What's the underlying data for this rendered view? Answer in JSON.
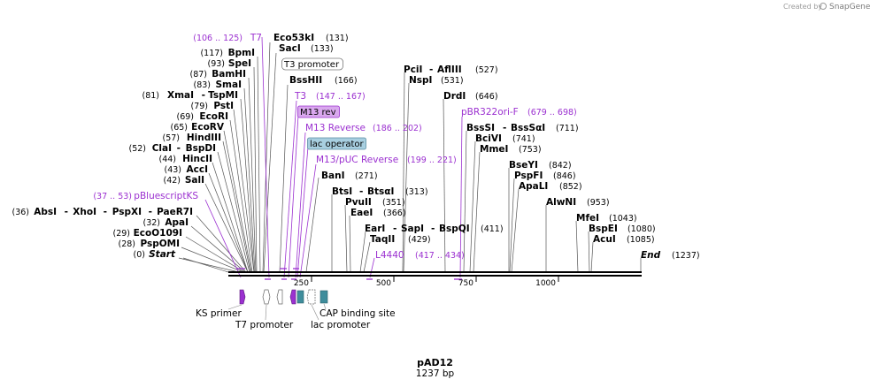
{
  "plasmid": {
    "name": "pAD12",
    "length_label": "1237 bp"
  },
  "credit": {
    "text": "Created by",
    "brand": "SnapGene"
  },
  "endpoints": {
    "start_label": "Start",
    "start_pos": "(0)",
    "end_label": "End",
    "end_pos": "(1237)"
  },
  "ticks": [
    "250",
    "500",
    "750",
    "1000"
  ],
  "left_sites": [
    {
      "name": "Eco53kI",
      "pos": "(131)"
    },
    {
      "name": "SacI",
      "pos": "(133)"
    },
    {
      "name": "BpmI",
      "pos": "(117)"
    },
    {
      "name": "SpeI",
      "pos": "(93)"
    },
    {
      "name": "BamHI",
      "pos": "(87)"
    },
    {
      "name": "SmaI",
      "pos": "(83)"
    },
    {
      "name": "XmaI",
      "name2": "TspMI",
      "pos": "(81)"
    },
    {
      "name": "PstI",
      "pos": "(79)"
    },
    {
      "name": "EcoRI",
      "pos": "(69)"
    },
    {
      "name": "EcoRV",
      "pos": "(65)"
    },
    {
      "name": "HindIII",
      "pos": "(57)"
    },
    {
      "name": "ClaI",
      "name2": "BspDI",
      "pos": "(52)"
    },
    {
      "name": "HincII",
      "pos": "(44)"
    },
    {
      "name": "AccI",
      "pos": "(43)"
    },
    {
      "name": "SalI",
      "pos": "(42)"
    },
    {
      "name": "AbsI",
      "name2": "XhoI",
      "name3": "PspXI",
      "name4": "PaeR7I",
      "pos": "(36)"
    },
    {
      "name": "ApaI",
      "pos": "(32)"
    },
    {
      "name": "EcoO109I",
      "pos": "(29)"
    },
    {
      "name": "PspOMI",
      "pos": "(28)"
    }
  ],
  "right_sites": [
    {
      "name": "BssHII",
      "pos": "(166)"
    },
    {
      "name": "BanI",
      "pos": "(271)"
    },
    {
      "name": "BtsI",
      "name2": "BtsαI",
      "pos": "(313)"
    },
    {
      "name": "PvuII",
      "pos": "(351)"
    },
    {
      "name": "EaeI",
      "pos": "(366)"
    },
    {
      "name": "EarI",
      "name2": "SapI",
      "name3": "BspQI",
      "pos": "(411)"
    },
    {
      "name": "TaqII",
      "pos": "(429)"
    },
    {
      "name": "PciI",
      "name2": "AflIII",
      "pos": "(527)"
    },
    {
      "name": "NspI",
      "pos": "(531)"
    },
    {
      "name": "DrdI",
      "pos": "(646)"
    },
    {
      "name": "BssSI",
      "name2": "BssSαI",
      "pos": "(711)"
    },
    {
      "name": "BciVI",
      "pos": "(741)"
    },
    {
      "name": "MmeI",
      "pos": "(753)"
    },
    {
      "name": "BseYI",
      "pos": "(842)"
    },
    {
      "name": "PspFI",
      "pos": "(846)"
    },
    {
      "name": "ApaLI",
      "pos": "(852)"
    },
    {
      "name": "AlwNI",
      "pos": "(953)"
    },
    {
      "name": "MfeI",
      "pos": "(1043)"
    },
    {
      "name": "BspEI",
      "pos": "(1080)"
    },
    {
      "name": "AcuI",
      "pos": "(1085)"
    }
  ],
  "primers": [
    {
      "name": "T7",
      "pos": "(106 .. 125)"
    },
    {
      "name": "T3",
      "pos": "(147 .. 167)"
    },
    {
      "name": "M13 rev"
    },
    {
      "name": "M13 Reverse",
      "pos": "(186 .. 202)"
    },
    {
      "name": "lac operator"
    },
    {
      "name": "M13/pUC Reverse",
      "pos": "(199 .. 221)"
    },
    {
      "name": "pBluescriptKS",
      "pos": "(37 .. 53)"
    },
    {
      "name": "pBR322ori-F",
      "pos": "(679 .. 698)"
    },
    {
      "name": "L4440",
      "pos": "(417 .. 434)"
    },
    {
      "name": "T3 promoter"
    }
  ],
  "features": {
    "ks_primer": "KS primer",
    "t7_promoter": "T7 promoter",
    "lac_promoter": "lac promoter",
    "cap_site": "CAP binding site"
  },
  "colors": {
    "primer": "#9b30d0",
    "primer_box": "#d9a8ee",
    "lac_box": "#a8cfe0",
    "cap": "#3f8d9c",
    "backbone": "#000000"
  }
}
